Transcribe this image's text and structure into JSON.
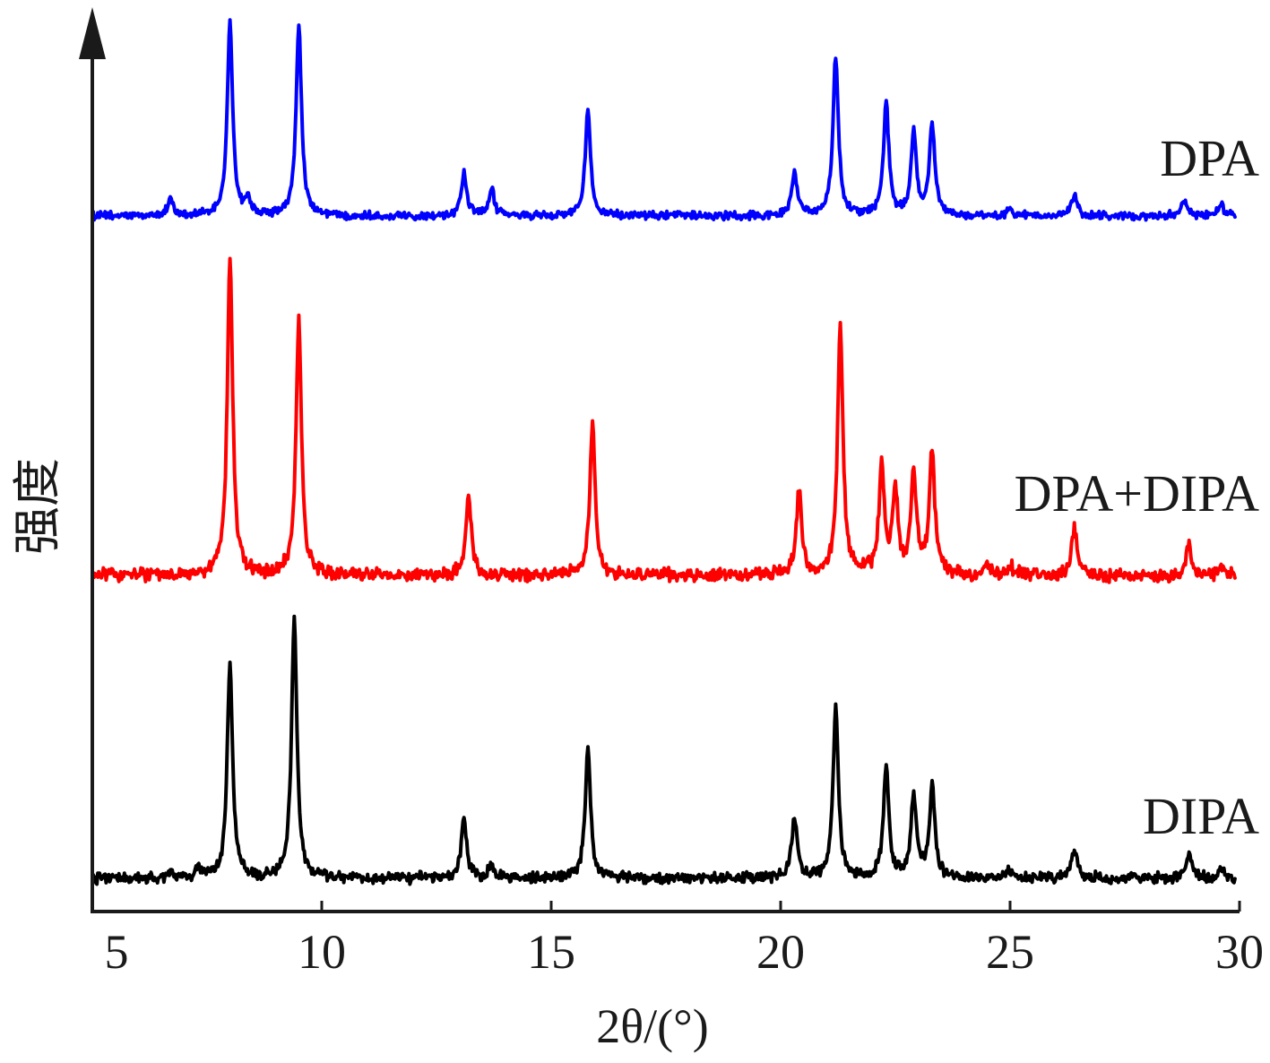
{
  "chart_data": {
    "type": "line",
    "title": "",
    "xlabel": "2θ/(°)",
    "ylabel": "强度",
    "xlim": [
      5,
      30
    ],
    "xticks": [
      5,
      10,
      15,
      20,
      25,
      30
    ],
    "xtick_labels": [
      "5",
      "10",
      "15",
      "20",
      "25",
      "30"
    ],
    "y_axis_ticks": false,
    "y_axis_arrow": true,
    "grid": false,
    "legend": "labels placed to the right of each trace",
    "colors": {
      "axis": "#1a1a1a",
      "DPA": "#0000ff",
      "DPA+DIPA": "#ff0000",
      "DIPA": "#000000"
    },
    "series": [
      {
        "name": "DPA",
        "color": "#0000ff",
        "stack_order": 2,
        "baseline": 1.0,
        "x_start": 5.0,
        "x_end": 29.9,
        "peaks": [
          {
            "x": 6.7,
            "height": 0.09
          },
          {
            "x": 8.0,
            "height": 1.0
          },
          {
            "x": 8.4,
            "height": 0.08
          },
          {
            "x": 9.5,
            "height": 1.0
          },
          {
            "x": 13.1,
            "height": 0.22
          },
          {
            "x": 13.7,
            "height": 0.14
          },
          {
            "x": 15.8,
            "height": 0.55
          },
          {
            "x": 20.3,
            "height": 0.23
          },
          {
            "x": 21.2,
            "height": 0.83
          },
          {
            "x": 22.3,
            "height": 0.58
          },
          {
            "x": 22.9,
            "height": 0.42
          },
          {
            "x": 23.3,
            "height": 0.47
          },
          {
            "x": 25.0,
            "height": 0.03
          },
          {
            "x": 26.4,
            "height": 0.11
          },
          {
            "x": 28.8,
            "height": 0.08
          },
          {
            "x": 29.6,
            "height": 0.06
          }
        ]
      },
      {
        "name": "DPA+DIPA",
        "color": "#ff0000",
        "stack_order": 1,
        "baseline": 1.0,
        "x_start": 5.0,
        "x_end": 29.9,
        "peaks": [
          {
            "x": 8.0,
            "height": 1.0
          },
          {
            "x": 9.5,
            "height": 0.8
          },
          {
            "x": 13.2,
            "height": 0.25
          },
          {
            "x": 15.9,
            "height": 0.47
          },
          {
            "x": 20.4,
            "height": 0.26
          },
          {
            "x": 21.3,
            "height": 0.78
          },
          {
            "x": 22.2,
            "height": 0.33
          },
          {
            "x": 22.5,
            "height": 0.25
          },
          {
            "x": 22.9,
            "height": 0.32
          },
          {
            "x": 23.3,
            "height": 0.39
          },
          {
            "x": 24.5,
            "height": 0.03
          },
          {
            "x": 25.0,
            "height": 0.03
          },
          {
            "x": 26.4,
            "height": 0.15
          },
          {
            "x": 28.9,
            "height": 0.09
          },
          {
            "x": 29.6,
            "height": 0.03
          }
        ]
      },
      {
        "name": "DIPA",
        "color": "#000000",
        "stack_order": 0,
        "baseline": 1.0,
        "x_start": 5.0,
        "x_end": 29.9,
        "peaks": [
          {
            "x": 6.7,
            "height": 0.03
          },
          {
            "x": 7.3,
            "height": 0.04
          },
          {
            "x": 8.0,
            "height": 0.83
          },
          {
            "x": 9.4,
            "height": 1.0
          },
          {
            "x": 13.1,
            "height": 0.22
          },
          {
            "x": 13.7,
            "height": 0.05
          },
          {
            "x": 15.8,
            "height": 0.5
          },
          {
            "x": 20.3,
            "height": 0.23
          },
          {
            "x": 21.2,
            "height": 0.65
          },
          {
            "x": 22.3,
            "height": 0.42
          },
          {
            "x": 22.9,
            "height": 0.32
          },
          {
            "x": 23.3,
            "height": 0.35
          },
          {
            "x": 25.0,
            "height": 0.03
          },
          {
            "x": 26.4,
            "height": 0.11
          },
          {
            "x": 28.9,
            "height": 0.1
          },
          {
            "x": 29.6,
            "height": 0.04
          }
        ]
      }
    ]
  }
}
